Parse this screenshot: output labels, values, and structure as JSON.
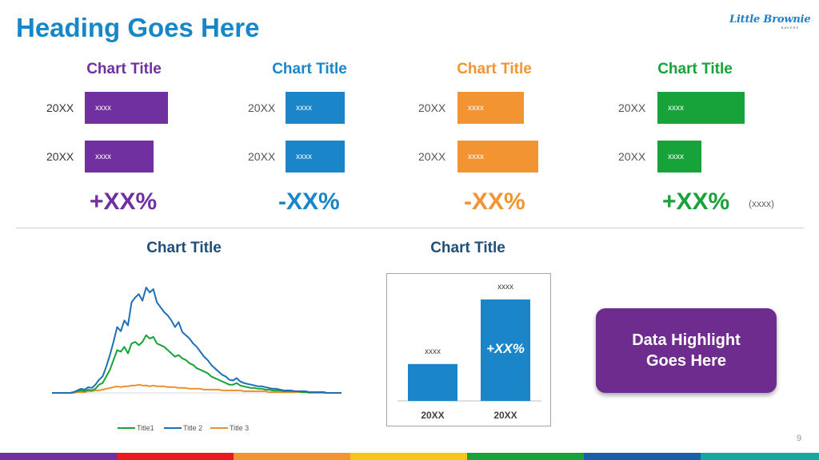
{
  "heading": "Heading Goes Here",
  "logo": {
    "brand": "Little Brownie",
    "sub": "BAKERS"
  },
  "colors": {
    "heading": "#1787c8",
    "purple": "#7030a0",
    "blue": "#1a85c8",
    "orange": "#f39433",
    "green": "#17a23a",
    "dark_title": "#1f4e79"
  },
  "mini_charts": [
    {
      "title": "Chart Title",
      "color": "#7030a0",
      "years": [
        "20XX",
        "20XX"
      ],
      "bar_labels": [
        "xxxx",
        "xxxx"
      ],
      "values": [
        0.9,
        0.75
      ],
      "pct": "+XX%"
    },
    {
      "title": "Chart Title",
      "color": "#1a85c8",
      "years": [
        "20XX",
        "20XX"
      ],
      "bar_labels": [
        "xxxx",
        "xxxx"
      ],
      "values": [
        0.64,
        0.64
      ],
      "pct": "-XX%"
    },
    {
      "title": "Chart Title",
      "color": "#f39433",
      "years": [
        "20XX",
        "20XX"
      ],
      "bar_labels": [
        "xxxx",
        "xxxx"
      ],
      "values": [
        0.72,
        0.88
      ],
      "pct": "-XX%"
    },
    {
      "title": "Chart Title",
      "color": "#17a23a",
      "years": [
        "20XX",
        "20XX"
      ],
      "bar_labels": [
        "xxxx",
        "xxxx"
      ],
      "values": [
        0.95,
        0.48
      ],
      "pct": "+XX%"
    }
  ],
  "mini_note": "(xxxx)",
  "line_chart": {
    "title": "Chart Title",
    "chart_data": {
      "type": "line",
      "title": "Chart Title",
      "x": [
        0,
        1,
        2,
        3,
        4,
        5,
        6,
        7,
        8,
        9,
        10,
        11,
        12,
        13,
        14,
        15,
        16,
        17,
        18,
        19,
        20,
        21,
        22,
        23,
        24,
        25,
        26,
        27,
        28,
        29,
        30,
        31,
        32,
        33,
        34,
        35,
        36,
        37,
        38,
        39,
        40,
        41,
        42,
        43,
        44,
        45,
        46,
        47,
        48,
        49,
        50,
        51,
        52,
        53,
        54,
        55,
        56,
        57,
        58,
        59,
        60,
        61,
        62,
        63,
        64,
        65,
        66,
        67,
        68,
        69,
        70,
        71,
        72,
        73,
        74,
        75,
        76,
        77,
        78,
        79,
        80
      ],
      "series": [
        {
          "name": "Title1",
          "color": "#17a23a",
          "values": [
            0,
            0,
            0,
            0,
            0,
            0,
            1,
            2,
            3,
            2,
            4,
            3,
            5,
            10,
            12,
            20,
            28,
            40,
            52,
            50,
            56,
            48,
            60,
            62,
            58,
            62,
            70,
            66,
            68,
            60,
            58,
            56,
            52,
            48,
            44,
            46,
            42,
            40,
            36,
            34,
            30,
            28,
            26,
            24,
            20,
            18,
            16,
            14,
            12,
            10,
            10,
            12,
            9,
            8,
            7,
            6,
            6,
            5,
            5,
            4,
            4,
            3,
            3,
            3,
            2,
            2,
            2,
            2,
            2,
            1,
            1,
            1,
            1,
            1,
            1,
            1,
            0,
            0,
            0,
            0,
            0
          ]
        },
        {
          "name": "Title 2",
          "color": "#1f6fb8",
          "values": [
            0,
            0,
            0,
            0,
            0,
            0,
            1,
            3,
            5,
            4,
            7,
            6,
            10,
            16,
            20,
            32,
            46,
            62,
            80,
            75,
            88,
            82,
            110,
            116,
            120,
            112,
            128,
            122,
            126,
            110,
            104,
            98,
            94,
            88,
            80,
            86,
            74,
            70,
            66,
            60,
            56,
            50,
            44,
            40,
            34,
            30,
            26,
            22,
            20,
            16,
            15,
            18,
            14,
            12,
            11,
            10,
            9,
            8,
            8,
            7,
            6,
            5,
            5,
            4,
            3,
            3,
            3,
            2,
            2,
            2,
            2,
            1,
            1,
            1,
            1,
            1,
            0,
            0,
            0,
            0,
            0
          ]
        },
        {
          "name": "Title 3",
          "color": "#e8922e",
          "values": [
            0,
            0,
            0,
            0,
            0,
            0,
            0,
            1,
            1,
            1,
            2,
            2,
            3,
            3,
            4,
            5,
            6,
            7,
            8,
            7,
            8,
            8,
            9,
            9,
            10,
            9,
            9,
            8,
            9,
            8,
            8,
            8,
            7,
            7,
            7,
            6,
            6,
            6,
            5,
            5,
            5,
            5,
            4,
            4,
            4,
            4,
            4,
            3,
            3,
            3,
            3,
            3,
            3,
            2,
            2,
            2,
            2,
            2,
            2,
            2,
            1,
            1,
            1,
            1,
            1,
            1,
            1,
            1,
            1,
            1,
            1,
            0,
            0,
            0,
            0,
            0,
            0,
            0,
            0,
            0,
            0
          ]
        }
      ]
    }
  },
  "bar_chart": {
    "title": "Chart Title",
    "chart_data": {
      "type": "bar",
      "title": "Chart Title",
      "categories": [
        "20XX",
        "20XX"
      ],
      "values": [
        4,
        11
      ],
      "data_labels": [
        "xxxx",
        "xxxx"
      ],
      "bar_color": "#1a85c8",
      "ylim": [
        0,
        11
      ]
    },
    "callout": "+XX%"
  },
  "highlight": "Data Highlight Goes Here",
  "page_number": "9",
  "footer_stripes": [
    "#7030a0",
    "#e8191f",
    "#f39433",
    "#f5c518",
    "#17a23a",
    "#1a5fa8",
    "#13a8a0"
  ]
}
